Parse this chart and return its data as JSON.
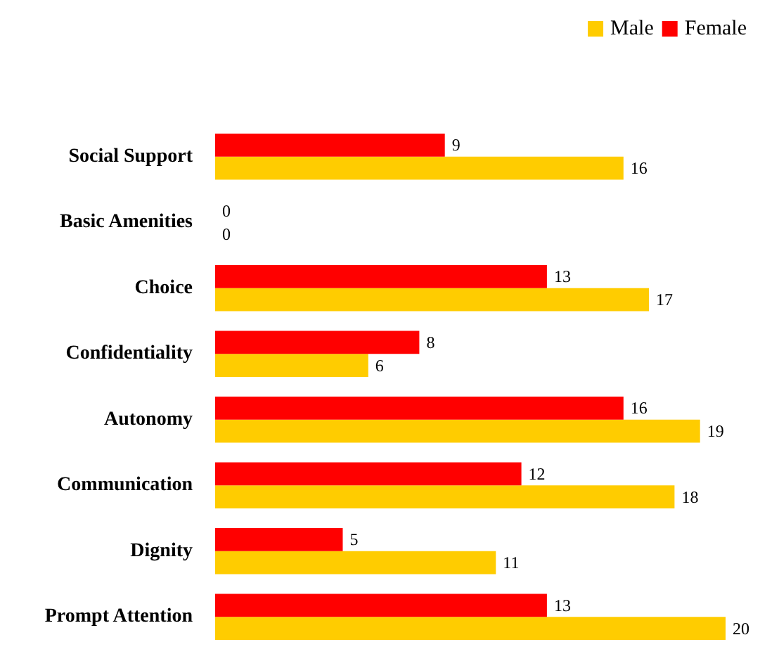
{
  "chart_data": {
    "type": "bar",
    "orientation": "horizontal",
    "categories": [
      "Social Support",
      "Basic Amenities",
      "Choice",
      "Confidentiality",
      "Autonomy",
      "Communication",
      "Dignity",
      "Prompt Attention"
    ],
    "series": [
      {
        "name": "Male",
        "color": "#ffcc00",
        "values": [
          16,
          0,
          17,
          6,
          19,
          18,
          11,
          20
        ]
      },
      {
        "name": "Female",
        "color": "#ff0000",
        "values": [
          9,
          0,
          13,
          8,
          16,
          12,
          5,
          13
        ]
      }
    ],
    "data_labels": true,
    "legend": "top right",
    "grid": false
  }
}
